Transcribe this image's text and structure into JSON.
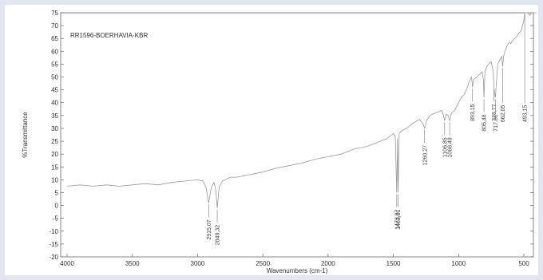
{
  "chart_data": {
    "type": "line",
    "title": "RR1596-BOERHAVIA-KBR",
    "xlabel": "Wavenumbers (cm-1)",
    "ylabel": "%Transmittance",
    "xlim": [
      4000,
      400
    ],
    "x_reversed": true,
    "ylim": [
      -20,
      75
    ],
    "x_ticks": [
      4000,
      3500,
      3000,
      2500,
      2000,
      1500,
      1000,
      500
    ],
    "y_ticks": [
      -20,
      -15,
      -10,
      -5,
      0,
      5,
      10,
      15,
      20,
      25,
      30,
      35,
      40,
      45,
      50,
      55,
      60,
      65,
      70,
      75
    ],
    "grid": false,
    "series": [
      {
        "color": "#9a9a9a",
        "x": [
          4000,
          3900,
          3800,
          3700,
          3600,
          3500,
          3400,
          3300,
          3200,
          3100,
          3000,
          2960,
          2935,
          2915.07,
          2895,
          2875,
          2860,
          2849.32,
          2835,
          2810,
          2750,
          2700,
          2600,
          2500,
          2400,
          2300,
          2200,
          2100,
          2000,
          1900,
          1800,
          1700,
          1600,
          1550,
          1500,
          1485,
          1473.97,
          1468,
          1463.01,
          1455,
          1440,
          1400,
          1350,
          1300,
          1275,
          1260.27,
          1245,
          1220,
          1180,
          1150,
          1130,
          1118,
          1106.85,
          1095,
          1080,
          1068.49,
          1055,
          1030,
          1000,
          980,
          960,
          940,
          920,
          900,
          893.15,
          885,
          860,
          840,
          820,
          810,
          805.48,
          798,
          785,
          770,
          750,
          735,
          728.77,
          722,
          717.81,
          710,
          700,
          690,
          680,
          670,
          662.05,
          655,
          645,
          630,
          620,
          610,
          600,
          590,
          580,
          570,
          560,
          550,
          540,
          530,
          520,
          510,
          500,
          493.15,
          485,
          470,
          455,
          440,
          420,
          400
        ],
        "y": [
          7.5,
          8,
          7.5,
          8,
          7.5,
          8,
          8.5,
          8,
          9,
          9.5,
          10,
          9.5,
          7,
          1,
          7,
          9,
          6,
          -1,
          7,
          9.5,
          11,
          11,
          12,
          13,
          14.5,
          15.5,
          16.5,
          18,
          19,
          20,
          22,
          23,
          25,
          26,
          28,
          27,
          5,
          26,
          5,
          28,
          29,
          30,
          32,
          33.5,
          32,
          30,
          33,
          35,
          36,
          36.5,
          37,
          35.5,
          33,
          35.5,
          35,
          33,
          36,
          37,
          40,
          42,
          43,
          45,
          48,
          50,
          46,
          49,
          50,
          51,
          52,
          49,
          42,
          52,
          54,
          55,
          56,
          52,
          46,
          43,
          42,
          48,
          55,
          56,
          57,
          58,
          54,
          58,
          60,
          62,
          63,
          63.5,
          63,
          64,
          64.5,
          65,
          65.5,
          66,
          67,
          67.5,
          68,
          70,
          72,
          75,
          75,
          75,
          74,
          75,
          75,
          75
        ]
      }
    ],
    "annotations": [
      "2915,07",
      "2849,32",
      "1473,97",
      "1463,01",
      "1260,27",
      "1106,85",
      "1068,49",
      "893,15",
      "805,48",
      "728,77",
      "717,81",
      "662,05",
      "493,15"
    ]
  }
}
